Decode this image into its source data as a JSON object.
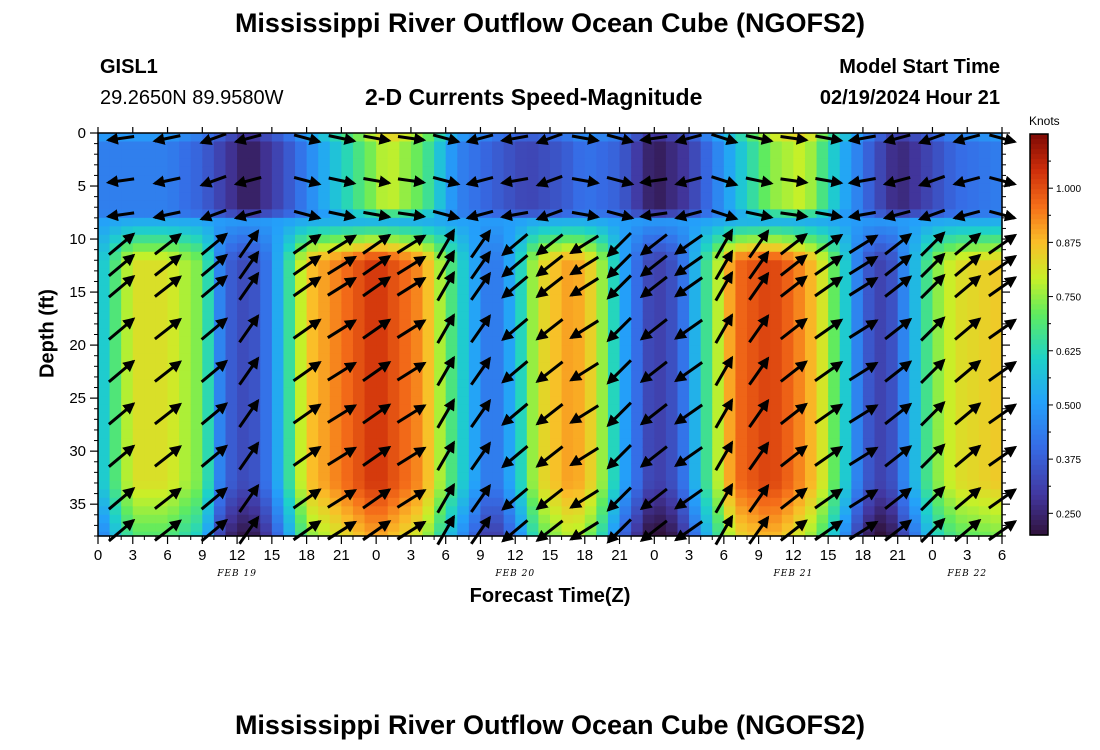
{
  "header": {
    "title": "Mississippi River Outflow Ocean Cube (NGOFS2)",
    "station": "GISL1",
    "coords": "29.2650N  89.9580W",
    "subtitle": "2-D Currents Speed-Magnitude",
    "model_start_label": "Model Start Time",
    "model_start_value": "02/19/2024 Hour 21"
  },
  "footer": {
    "title": "Mississippi River Outflow Ocean Cube (NGOFS2)"
  },
  "chart_data": {
    "type": "heatmap",
    "title": "2-D Currents Speed-Magnitude",
    "xlabel": "Forecast Time(Z)",
    "ylabel": "Depth (ft)",
    "x_ticks": [
      "0",
      "3",
      "6",
      "9",
      "12",
      "15",
      "18",
      "21",
      "0",
      "3",
      "6",
      "9",
      "12",
      "15",
      "18",
      "21",
      "0",
      "3",
      "6",
      "9",
      "12",
      "15",
      "18",
      "21",
      "0",
      "3",
      "6"
    ],
    "x_range_hours": [
      0,
      78
    ],
    "date_labels": [
      {
        "label": "FEB 19",
        "hour": 12
      },
      {
        "label": "FEB 20",
        "hour": 36
      },
      {
        "label": "FEB 21",
        "hour": 60
      },
      {
        "label": "FEB 22",
        "hour": 75
      }
    ],
    "y_ticks": [
      "0",
      "5",
      "10",
      "15",
      "20",
      "25",
      "30",
      "35"
    ],
    "y_range": [
      0,
      38
    ],
    "y_inverted": true,
    "colorbar": {
      "label": "Knots",
      "range": [
        0.2,
        1.125
      ],
      "ticks": [
        "1.000",
        "0.875",
        "0.750",
        "0.625",
        "0.500",
        "0.375",
        "0.250"
      ],
      "tick_values": [
        1.0,
        0.875,
        0.75,
        0.625,
        0.5,
        0.375,
        0.25
      ]
    },
    "surface_layer_speed_by_hour": [
      [
        0,
        0.44
      ],
      [
        6,
        0.44
      ],
      [
        9,
        0.38
      ],
      [
        13,
        0.22
      ],
      [
        16,
        0.34
      ],
      [
        19,
        0.5
      ],
      [
        23,
        0.7
      ],
      [
        25,
        0.8
      ],
      [
        28,
        0.7
      ],
      [
        31,
        0.45
      ],
      [
        34,
        0.38
      ],
      [
        37,
        0.32
      ],
      [
        40,
        0.36
      ],
      [
        42,
        0.42
      ],
      [
        45,
        0.38
      ],
      [
        48,
        0.22
      ],
      [
        51,
        0.3
      ],
      [
        55,
        0.55
      ],
      [
        58,
        0.74
      ],
      [
        61,
        0.8
      ],
      [
        64,
        0.55
      ],
      [
        67,
        0.35
      ],
      [
        69,
        0.25
      ],
      [
        71,
        0.3
      ],
      [
        74,
        0.4
      ],
      [
        78,
        0.44
      ]
    ],
    "deep_layer_speed_by_hour": [
      [
        0,
        0.55
      ],
      [
        3,
        0.82
      ],
      [
        6,
        0.82
      ],
      [
        9,
        0.72
      ],
      [
        10.5,
        0.45
      ],
      [
        12,
        0.33
      ],
      [
        14,
        0.36
      ],
      [
        16,
        0.58
      ],
      [
        18,
        0.86
      ],
      [
        24,
        1.04
      ],
      [
        28,
        0.92
      ],
      [
        30,
        0.72
      ],
      [
        32,
        0.55
      ],
      [
        34,
        0.4
      ],
      [
        36,
        0.55
      ],
      [
        38,
        0.82
      ],
      [
        41,
        0.92
      ],
      [
        43,
        0.82
      ],
      [
        45,
        0.55
      ],
      [
        47,
        0.36
      ],
      [
        48,
        0.3
      ],
      [
        50,
        0.36
      ],
      [
        52,
        0.6
      ],
      [
        55,
        0.96
      ],
      [
        58,
        1.02
      ],
      [
        60,
        0.96
      ],
      [
        62,
        0.86
      ],
      [
        64,
        0.66
      ],
      [
        66,
        0.38
      ],
      [
        68,
        0.3
      ],
      [
        70,
        0.5
      ],
      [
        72,
        0.72
      ],
      [
        74,
        0.82
      ],
      [
        78,
        0.86
      ]
    ],
    "vectors": {
      "columns_hours": [
        2,
        6,
        10,
        13,
        18,
        21,
        24,
        27,
        30,
        33,
        36,
        39,
        42,
        45,
        48,
        51,
        54,
        57,
        60,
        63,
        66,
        69,
        72,
        75,
        78
      ],
      "surface_rows_ft": [
        0.5,
        4.5,
        7.7
      ],
      "deep_rows_ft": [
        10.5,
        12.5,
        14.5,
        18.5,
        22.5,
        26.5,
        30.5,
        34.5,
        37.5
      ],
      "surface_angles_deg": [
        188,
        192,
        200,
        195,
        345,
        348,
        350,
        352,
        345,
        195,
        190,
        200,
        350,
        345,
        188,
        195,
        342,
        348,
        352,
        350,
        190,
        195,
        200,
        195,
        345
      ],
      "deep_angles_deg": [
        40,
        38,
        40,
        55,
        35,
        32,
        35,
        32,
        60,
        55,
        220,
        218,
        212,
        225,
        218,
        215,
        60,
        55,
        38,
        35,
        32,
        38,
        45,
        40,
        35
      ]
    }
  }
}
